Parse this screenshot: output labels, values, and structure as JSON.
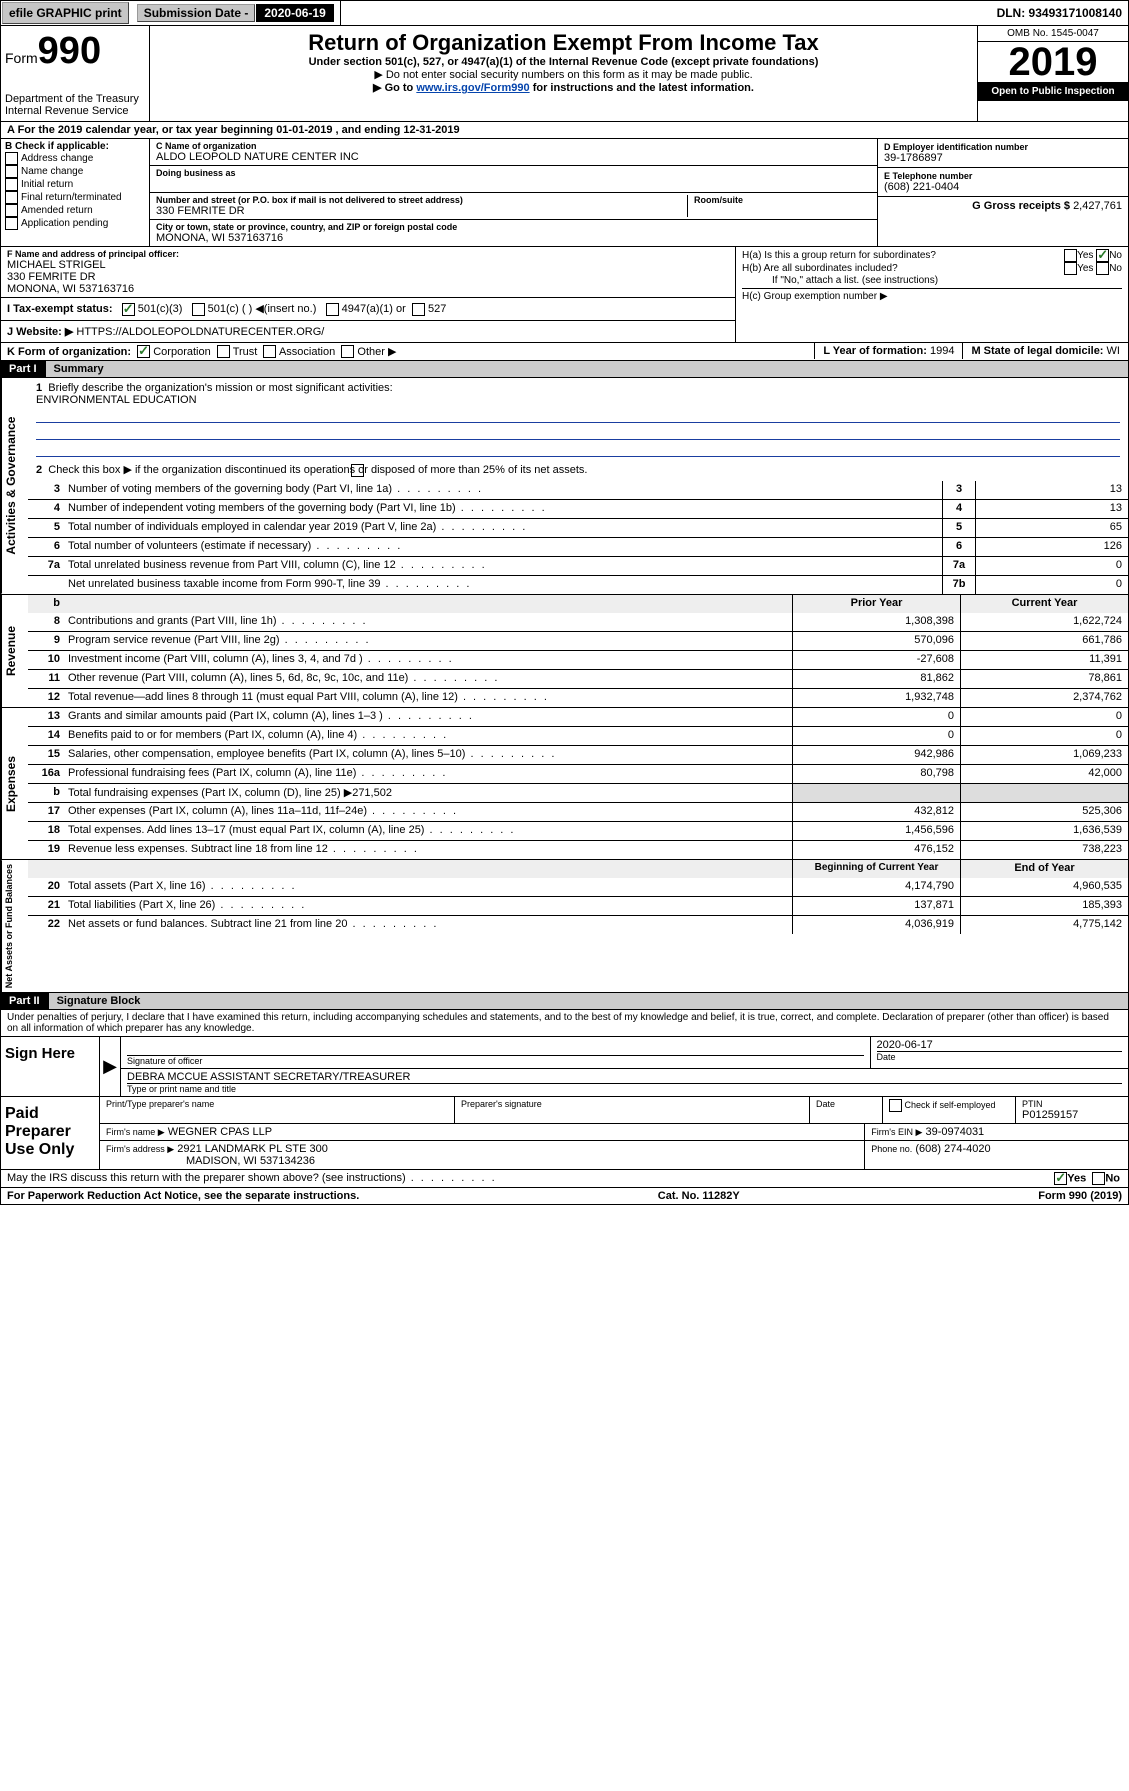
{
  "topbar": {
    "efile": "efile GRAPHIC print",
    "sub_label": "Submission Date - ",
    "sub_date": "2020-06-19",
    "dln": "DLN: 93493171008140"
  },
  "header": {
    "form_small": "Form",
    "form_num": "990",
    "dept": "Department of the Treasury\nInternal Revenue Service",
    "title": "Return of Organization Exempt From Income Tax",
    "sub1": "Under section 501(c), 527, or 4947(a)(1) of the Internal Revenue Code (except private foundations)",
    "sub2": "▶ Do not enter social security numbers on this form as it may be made public.",
    "sub3_pre": "▶ Go to ",
    "sub3_link": "www.irs.gov/Form990",
    "sub3_post": " for instructions and the latest information.",
    "omb": "OMB No. 1545-0047",
    "year": "2019",
    "inspect": "Open to Public Inspection"
  },
  "rowA": "A For the 2019 calendar year, or tax year beginning 01-01-2019  , and ending 12-31-2019",
  "boxB": {
    "title": "B Check if applicable:",
    "items": [
      "Address change",
      "Name change",
      "Initial return",
      "Final return/terminated",
      "Amended return",
      "Application pending"
    ]
  },
  "boxC": {
    "name_lbl": "C Name of organization",
    "name": "ALDO LEOPOLD NATURE CENTER INC",
    "dba_lbl": "Doing business as",
    "addr_lbl": "Number and street (or P.O. box if mail is not delivered to street address)",
    "room_lbl": "Room/suite",
    "addr": "330 FEMRITE DR",
    "city_lbl": "City or town, state or province, country, and ZIP or foreign postal code",
    "city": "MONONA, WI  537163716"
  },
  "boxD": {
    "lbl": "D Employer identification number",
    "val": "39-1786897"
  },
  "boxE": {
    "lbl": "E Telephone number",
    "val": "(608) 221-0404"
  },
  "boxG": {
    "lbl": "G Gross receipts $",
    "val": "2,427,761"
  },
  "boxF": {
    "lbl": "F  Name and address of principal officer:",
    "name": "MICHAEL STRIGEL",
    "addr1": "330 FEMRITE DR",
    "addr2": "MONONA, WI  537163716"
  },
  "boxH": {
    "a": "H(a)  Is this a group return for subordinates?",
    "b": "H(b)  Are all subordinates included?",
    "note": "If \"No,\" attach a list. (see instructions)",
    "c": "H(c)  Group exemption number ▶",
    "yes": "Yes",
    "no": "No"
  },
  "boxI": {
    "lbl": "I    Tax-exempt status:",
    "opts": [
      "501(c)(3)",
      "501(c) (   ) ◀(insert no.)",
      "4947(a)(1) or",
      "527"
    ]
  },
  "boxJ": {
    "lbl": "J   Website: ▶",
    "val": "HTTPS://ALDOLEOPOLDNATURECENTER.ORG/"
  },
  "boxK": {
    "lbl": "K Form of organization:",
    "opts": [
      "Corporation",
      "Trust",
      "Association",
      "Other ▶"
    ]
  },
  "boxL": {
    "lbl": "L Year of formation:",
    "val": "1994"
  },
  "boxM": {
    "lbl": "M State of legal domicile:",
    "val": "WI"
  },
  "part1": {
    "hdr": "Part I",
    "title": "Summary"
  },
  "summary": {
    "q1": "Briefly describe the organization's mission or most significant activities:",
    "q1val": "ENVIRONMENTAL EDUCATION",
    "q2": "Check this box ▶       if the organization discontinued its operations or disposed of more than 25% of its net assets."
  },
  "gov_rows": [
    {
      "n": "3",
      "d": "Number of voting members of the governing body (Part VI, line 1a)",
      "b": "3",
      "v": "13"
    },
    {
      "n": "4",
      "d": "Number of independent voting members of the governing body (Part VI, line 1b)",
      "b": "4",
      "v": "13"
    },
    {
      "n": "5",
      "d": "Total number of individuals employed in calendar year 2019 (Part V, line 2a)",
      "b": "5",
      "v": "65"
    },
    {
      "n": "6",
      "d": "Total number of volunteers (estimate if necessary)",
      "b": "6",
      "v": "126"
    },
    {
      "n": "7a",
      "d": "Total unrelated business revenue from Part VIII, column (C), line 12",
      "b": "7a",
      "v": "0"
    },
    {
      "n": "",
      "d": "Net unrelated business taxable income from Form 990-T, line 39",
      "b": "7b",
      "v": "0"
    }
  ],
  "col_hdr": {
    "b": "b",
    "py": "Prior Year",
    "cy": "Current Year"
  },
  "rev_rows": [
    {
      "n": "8",
      "d": "Contributions and grants (Part VIII, line 1h)",
      "py": "1,308,398",
      "cy": "1,622,724"
    },
    {
      "n": "9",
      "d": "Program service revenue (Part VIII, line 2g)",
      "py": "570,096",
      "cy": "661,786"
    },
    {
      "n": "10",
      "d": "Investment income (Part VIII, column (A), lines 3, 4, and 7d )",
      "py": "-27,608",
      "cy": "11,391"
    },
    {
      "n": "11",
      "d": "Other revenue (Part VIII, column (A), lines 5, 6d, 8c, 9c, 10c, and 11e)",
      "py": "81,862",
      "cy": "78,861"
    },
    {
      "n": "12",
      "d": "Total revenue—add lines 8 through 11 (must equal Part VIII, column (A), line 12)",
      "py": "1,932,748",
      "cy": "2,374,762"
    }
  ],
  "exp_rows": [
    {
      "n": "13",
      "d": "Grants and similar amounts paid (Part IX, column (A), lines 1–3 )",
      "py": "0",
      "cy": "0"
    },
    {
      "n": "14",
      "d": "Benefits paid to or for members (Part IX, column (A), line 4)",
      "py": "0",
      "cy": "0"
    },
    {
      "n": "15",
      "d": "Salaries, other compensation, employee benefits (Part IX, column (A), lines 5–10)",
      "py": "942,986",
      "cy": "1,069,233"
    },
    {
      "n": "16a",
      "d": "Professional fundraising fees (Part IX, column (A), line 11e)",
      "py": "80,798",
      "cy": "42,000"
    },
    {
      "n": "b",
      "d": "Total fundraising expenses (Part IX, column (D), line 25) ▶271,502",
      "py": "",
      "cy": "",
      "shade": true
    },
    {
      "n": "17",
      "d": "Other expenses (Part IX, column (A), lines 11a–11d, 11f–24e)",
      "py": "432,812",
      "cy": "525,306"
    },
    {
      "n": "18",
      "d": "Total expenses. Add lines 13–17 (must equal Part IX, column (A), line 25)",
      "py": "1,456,596",
      "cy": "1,636,539"
    },
    {
      "n": "19",
      "d": "Revenue less expenses. Subtract line 18 from line 12",
      "py": "476,152",
      "cy": "738,223"
    }
  ],
  "na_hdr": {
    "py": "Beginning of Current Year",
    "cy": "End of Year"
  },
  "na_rows": [
    {
      "n": "20",
      "d": "Total assets (Part X, line 16)",
      "py": "4,174,790",
      "cy": "4,960,535"
    },
    {
      "n": "21",
      "d": "Total liabilities (Part X, line 26)",
      "py": "137,871",
      "cy": "185,393"
    },
    {
      "n": "22",
      "d": "Net assets or fund balances. Subtract line 21 from line 20",
      "py": "4,036,919",
      "cy": "4,775,142"
    }
  ],
  "part2": {
    "hdr": "Part II",
    "title": "Signature Block"
  },
  "perjury": "Under penalties of perjury, I declare that I have examined this return, including accompanying schedules and statements, and to the best of my knowledge and belief, it is true, correct, and complete. Declaration of preparer (other than officer) is based on all information of which preparer has any knowledge.",
  "sign": {
    "side": "Sign Here",
    "sig_lbl": "Signature of officer",
    "date": "2020-06-17",
    "date_lbl": "Date",
    "name": "DEBRA MCCUE  ASSISTANT SECRETARY/TREASURER",
    "name_lbl": "Type or print name and title"
  },
  "paid": {
    "side": "Paid Preparer Use Only",
    "prep_name_lbl": "Print/Type preparer's name",
    "prep_sig_lbl": "Preparer's signature",
    "date_lbl": "Date",
    "check_lbl": "Check        if self-employed",
    "ptin_lbl": "PTIN",
    "ptin": "P01259157",
    "firm_name_lbl": "Firm's name    ▶",
    "firm_name": "WEGNER CPAS LLP",
    "firm_ein_lbl": "Firm's EIN ▶",
    "firm_ein": "39-0974031",
    "firm_addr_lbl": "Firm's address ▶",
    "firm_addr1": "2921 LANDMARK PL STE 300",
    "firm_addr2": "MADISON, WI  537134236",
    "phone_lbl": "Phone no.",
    "phone": "(608) 274-4020"
  },
  "discuss": "May the IRS discuss this return with the preparer shown above? (see instructions)",
  "footer": {
    "left": "For Paperwork Reduction Act Notice, see the separate instructions.",
    "mid": "Cat. No. 11282Y",
    "right": "Form 990 (2019)"
  },
  "sidelabels": {
    "gov": "Activities & Governance",
    "rev": "Revenue",
    "exp": "Expenses",
    "na": "Net Assets or Fund Balances"
  }
}
